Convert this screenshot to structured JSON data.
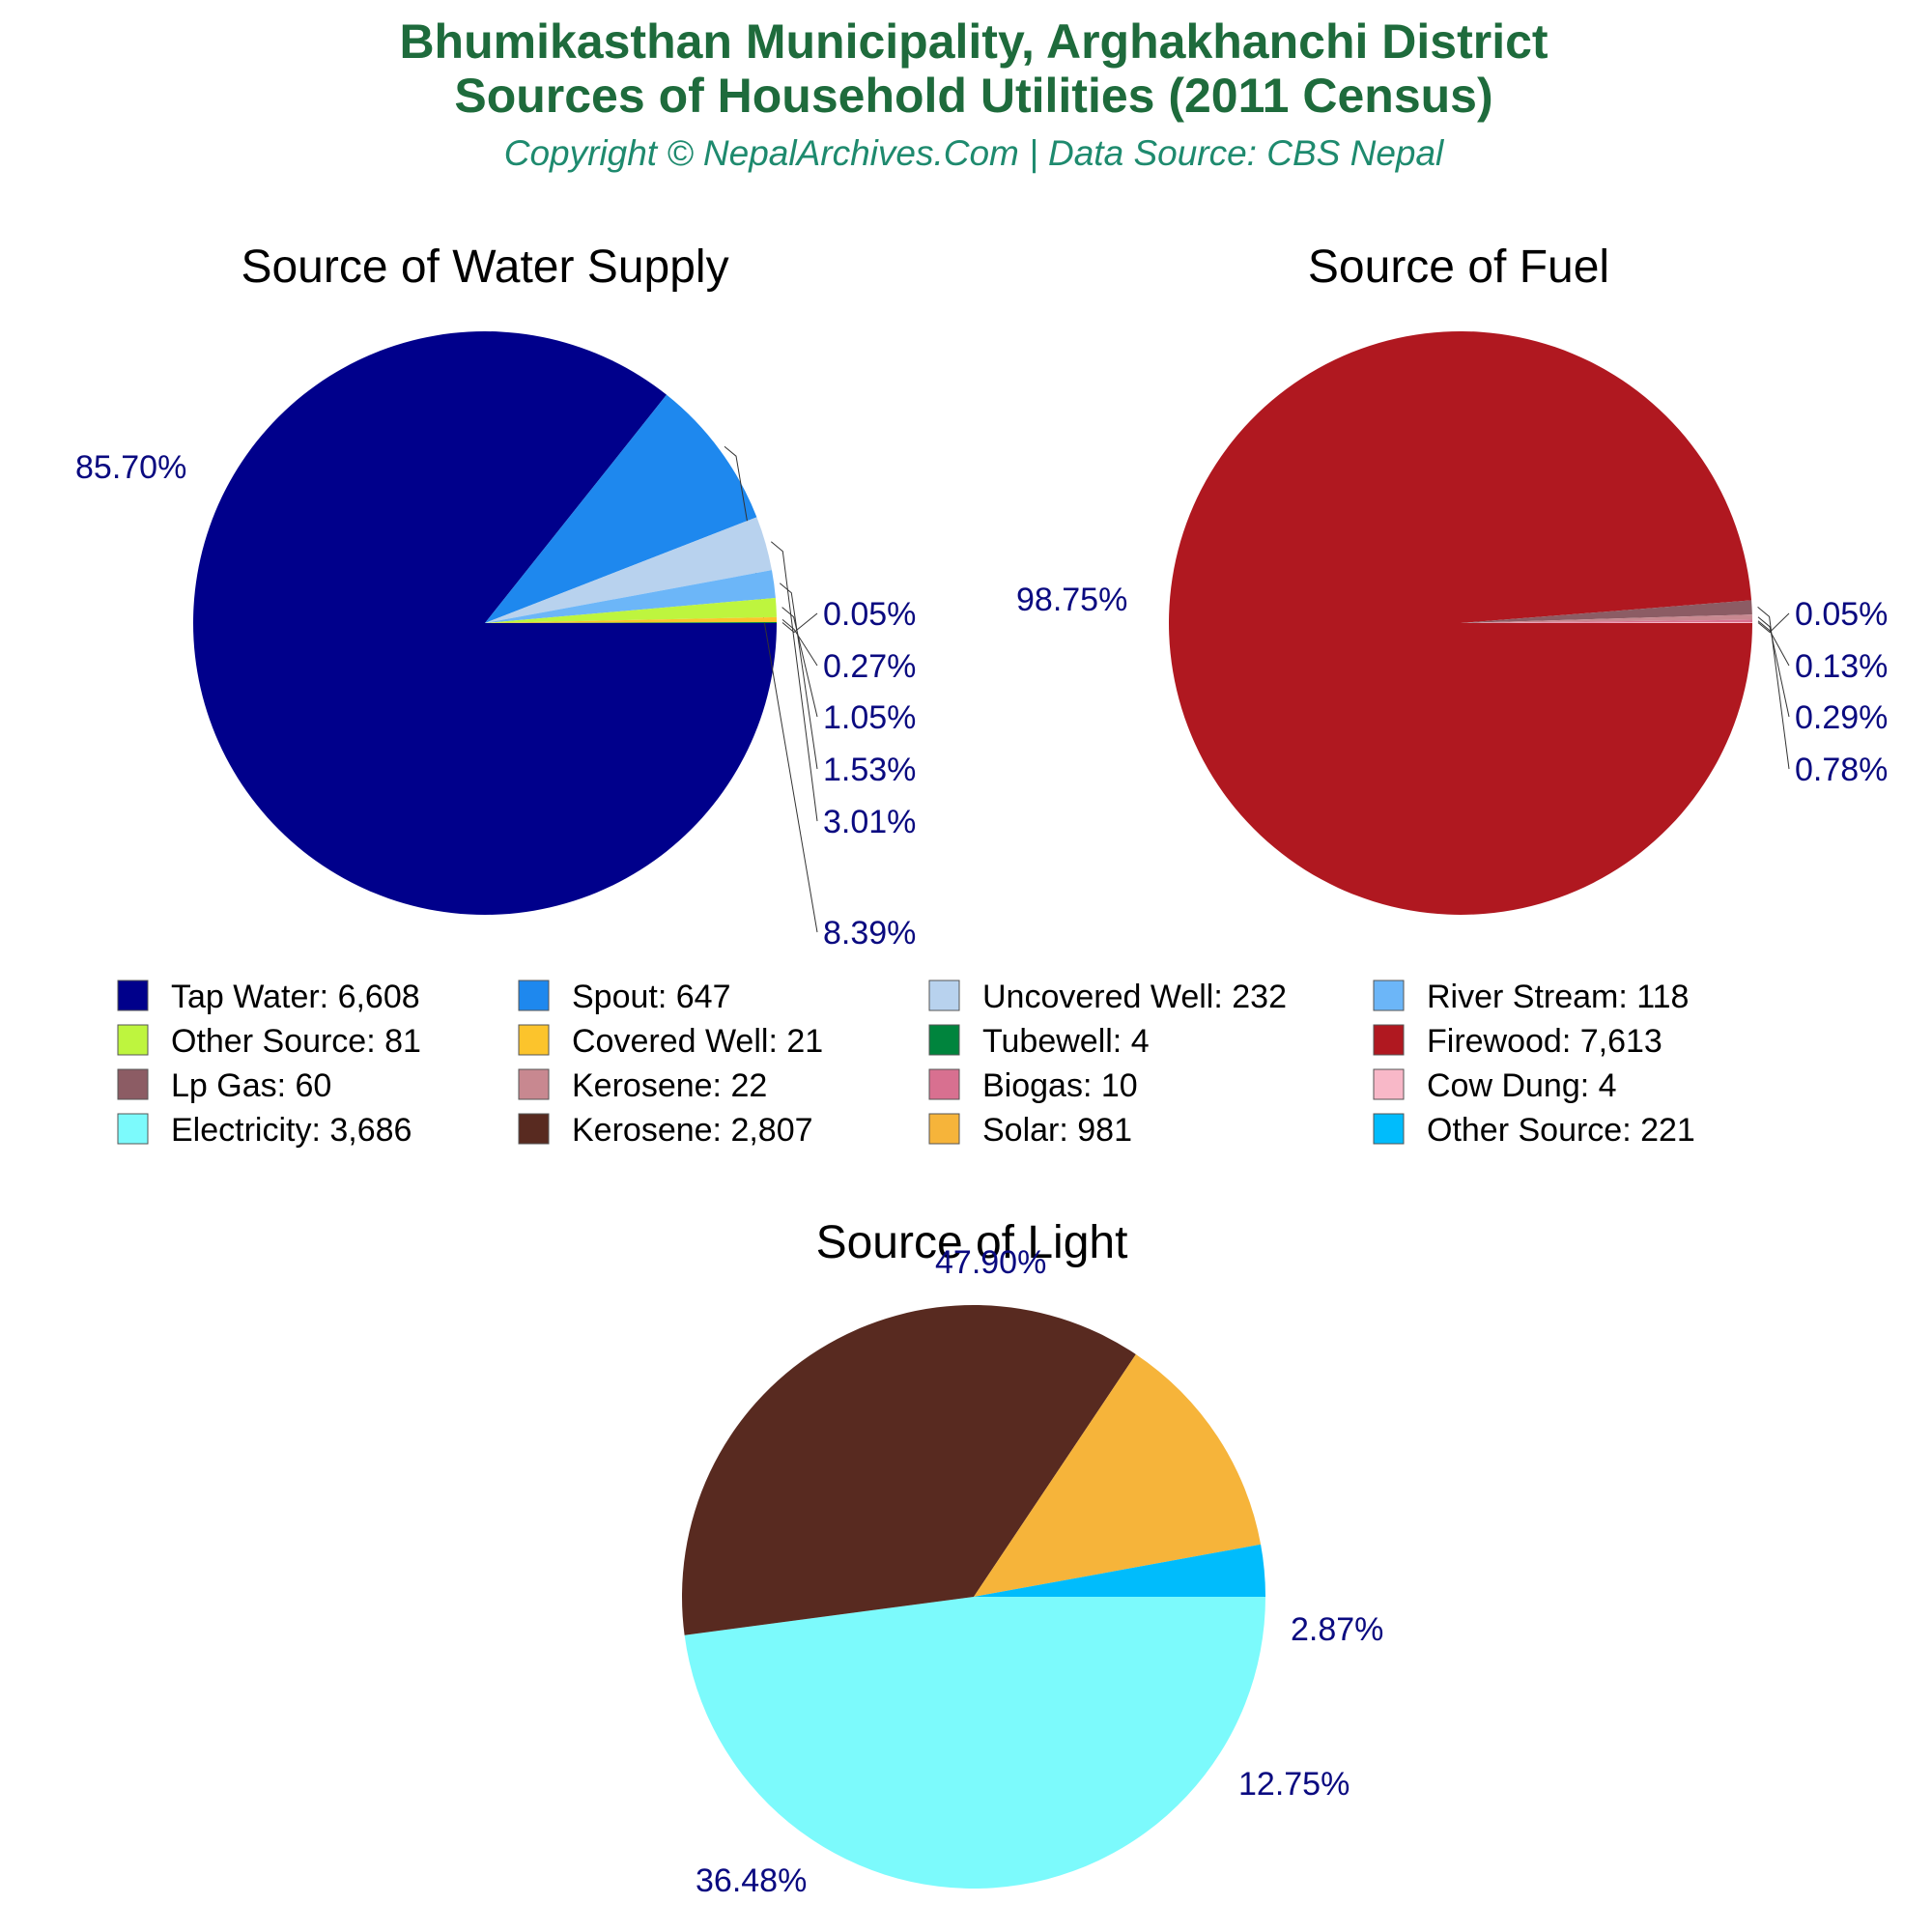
{
  "header": {
    "title_line1": "Bhumikasthan Municipality, Arghakhanchi District",
    "title_line2": "Sources of Household Utilities (2011 Census)",
    "subtitle": "Copyright © NepalArchives.Com | Data Source: CBS Nepal"
  },
  "colors": {
    "title": "#1e6b3c",
    "subtitle": "#1e8a6e",
    "percent_labels": "#0a0a80"
  },
  "legend": [
    {
      "label": "Tap Water: 6,608",
      "color": "#00008b"
    },
    {
      "label": "Spout: 647",
      "color": "#1e88ee"
    },
    {
      "label": "Uncovered Well: 232",
      "color": "#b8d2ee"
    },
    {
      "label": "River Stream: 118",
      "color": "#6cb6f8"
    },
    {
      "label": "Other Source: 81",
      "color": "#bef53e"
    },
    {
      "label": "Covered Well: 21",
      "color": "#fcc42c"
    },
    {
      "label": "Tubewell: 4",
      "color": "#00843d"
    },
    {
      "label": "Firewood: 7,613",
      "color": "#b01820"
    },
    {
      "label": "Lp Gas: 60",
      "color": "#8c5c64"
    },
    {
      "label": "Kerosene: 22",
      "color": "#c88890"
    },
    {
      "label": "Biogas: 10",
      "color": "#d87090"
    },
    {
      "label": "Cow Dung: 4",
      "color": "#f8b8c8"
    },
    {
      "label": "Electricity: 3,686",
      "color": "#7cfafc"
    },
    {
      "label": "Kerosene: 2,807",
      "color": "#582a20"
    },
    {
      "label": "Solar: 981",
      "color": "#f6b43a"
    },
    {
      "label": "Other Source: 221",
      "color": "#00bcfc"
    }
  ],
  "chart_data": [
    {
      "type": "pie",
      "title": "Source of Water Supply",
      "slices": [
        {
          "name": "Tap Water",
          "value": 6608,
          "percent_label": "85.70%",
          "color": "#00008b"
        },
        {
          "name": "Spout",
          "value": 647,
          "percent_label": "8.39%",
          "color": "#1e88ee"
        },
        {
          "name": "Uncovered Well",
          "value": 232,
          "percent_label": "3.01%",
          "color": "#b8d2ee"
        },
        {
          "name": "River Stream",
          "value": 118,
          "percent_label": "1.53%",
          "color": "#6cb6f8"
        },
        {
          "name": "Other Source",
          "value": 81,
          "percent_label": "1.05%",
          "color": "#bef53e"
        },
        {
          "name": "Covered Well",
          "value": 21,
          "percent_label": "0.27%",
          "color": "#fcc42c"
        },
        {
          "name": "Tubewell",
          "value": 4,
          "percent_label": "0.05%",
          "color": "#00843d"
        }
      ]
    },
    {
      "type": "pie",
      "title": "Source of Fuel",
      "slices": [
        {
          "name": "Firewood",
          "value": 7613,
          "percent_label": "98.75%",
          "color": "#b01820"
        },
        {
          "name": "Lp Gas",
          "value": 60,
          "percent_label": "0.78%",
          "color": "#8c5c64"
        },
        {
          "name": "Kerosene",
          "value": 22,
          "percent_label": "0.29%",
          "color": "#c88890"
        },
        {
          "name": "Biogas",
          "value": 10,
          "percent_label": "0.13%",
          "color": "#d87090"
        },
        {
          "name": "Cow Dung",
          "value": 4,
          "percent_label": "0.05%",
          "color": "#f8b8c8"
        }
      ]
    },
    {
      "type": "pie",
      "title": "Source of Light",
      "slices": [
        {
          "name": "Electricity",
          "value": 3686,
          "percent_label": "47.90%",
          "color": "#7cfafc"
        },
        {
          "name": "Kerosene",
          "value": 2807,
          "percent_label": "36.48%",
          "color": "#582a20"
        },
        {
          "name": "Solar",
          "value": 981,
          "percent_label": "12.75%",
          "color": "#f6b43a"
        },
        {
          "name": "Other Source",
          "value": 221,
          "percent_label": "2.87%",
          "color": "#00bcfc"
        }
      ]
    }
  ]
}
